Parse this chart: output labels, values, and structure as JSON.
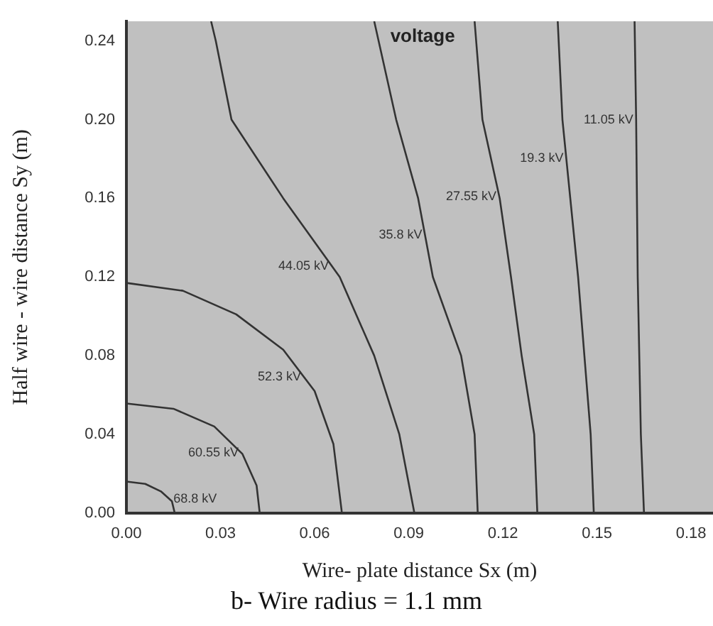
{
  "chart_data": {
    "type": "line",
    "title": "b- Wire radius = 1.1 mm",
    "xlabel": "Wire- plate distance Sx (m)",
    "ylabel": "Half wire - wire distance Sy (m)",
    "xlim": [
      0,
      0.187
    ],
    "ylim": [
      0,
      0.25
    ],
    "xticks": [
      {
        "value": 0,
        "label": "0.00"
      },
      {
        "value": 0.03,
        "label": "0.03"
      },
      {
        "value": 0.06,
        "label": "0.06"
      },
      {
        "value": 0.09,
        "label": "0.09"
      },
      {
        "value": 0.12,
        "label": "0.12"
      },
      {
        "value": 0.15,
        "label": "0.15"
      },
      {
        "value": 0.18,
        "label": "0.18"
      }
    ],
    "yticks": [
      {
        "value": 0,
        "label": "0.00"
      },
      {
        "value": 0.04,
        "label": "0.04"
      },
      {
        "value": 0.08,
        "label": "0.08"
      },
      {
        "value": 0.12,
        "label": "0.12"
      },
      {
        "value": 0.16,
        "label": "0.16"
      },
      {
        "value": 0.2,
        "label": "0.20"
      },
      {
        "value": 0.24,
        "label": "0.24"
      }
    ],
    "grid": false,
    "legend": false,
    "marker": "none",
    "line_style": "solid",
    "series": [
      {
        "name": "68.8 kV",
        "color": "#333333",
        "x": [
          0,
          0.006,
          0.011,
          0.0145,
          0.0154
        ],
        "values": [
          0.016,
          0.0148,
          0.011,
          0.006,
          0
        ]
      },
      {
        "name": "60.55 kV",
        "color": "#333333",
        "x": [
          0,
          0.015,
          0.028,
          0.037,
          0.0415,
          0.0425
        ],
        "values": [
          0.0557,
          0.053,
          0.044,
          0.03,
          0.014,
          0
        ]
      },
      {
        "name": "52.3 kV",
        "color": "#333333",
        "x": [
          0,
          0.018,
          0.035,
          0.05,
          0.06,
          0.066,
          0.0687
        ],
        "values": [
          0.117,
          0.113,
          0.101,
          0.083,
          0.062,
          0.035,
          0
        ]
      },
      {
        "name": "44.05 kV",
        "color": "#333333",
        "x": [
          0.027,
          0.0285,
          0.0335,
          0.05,
          0.068,
          0.079,
          0.087,
          0.0918
        ],
        "values": [
          0.25,
          0.24,
          0.2,
          0.16,
          0.12,
          0.08,
          0.04,
          0
        ]
      },
      {
        "name": "35.8 kV",
        "color": "#333333",
        "x": [
          0.079,
          0.086,
          0.093,
          0.0977,
          0.1067,
          0.111,
          0.112
        ],
        "values": [
          0.25,
          0.2,
          0.16,
          0.12,
          0.08,
          0.04,
          0
        ]
      },
      {
        "name": "27.55 kV",
        "color": "#333333",
        "x": [
          0.111,
          0.1135,
          0.119,
          0.1226,
          0.126,
          0.13,
          0.131
        ],
        "values": [
          0.25,
          0.2,
          0.16,
          0.12,
          0.08,
          0.04,
          0
        ]
      },
      {
        "name": "19.3 kV",
        "color": "#333333",
        "x": [
          0.1375,
          0.139,
          0.1415,
          0.144,
          0.146,
          0.148,
          0.149
        ],
        "values": [
          0.25,
          0.2,
          0.16,
          0.12,
          0.08,
          0.04,
          0
        ]
      },
      {
        "name": "11.05 kV",
        "color": "#333333",
        "x": [
          0.162,
          0.1625,
          0.163,
          0.164,
          0.165
        ],
        "values": [
          0.25,
          0.2,
          0.12,
          0.04,
          0
        ]
      }
    ],
    "annotations": [
      "voltage"
    ]
  }
}
